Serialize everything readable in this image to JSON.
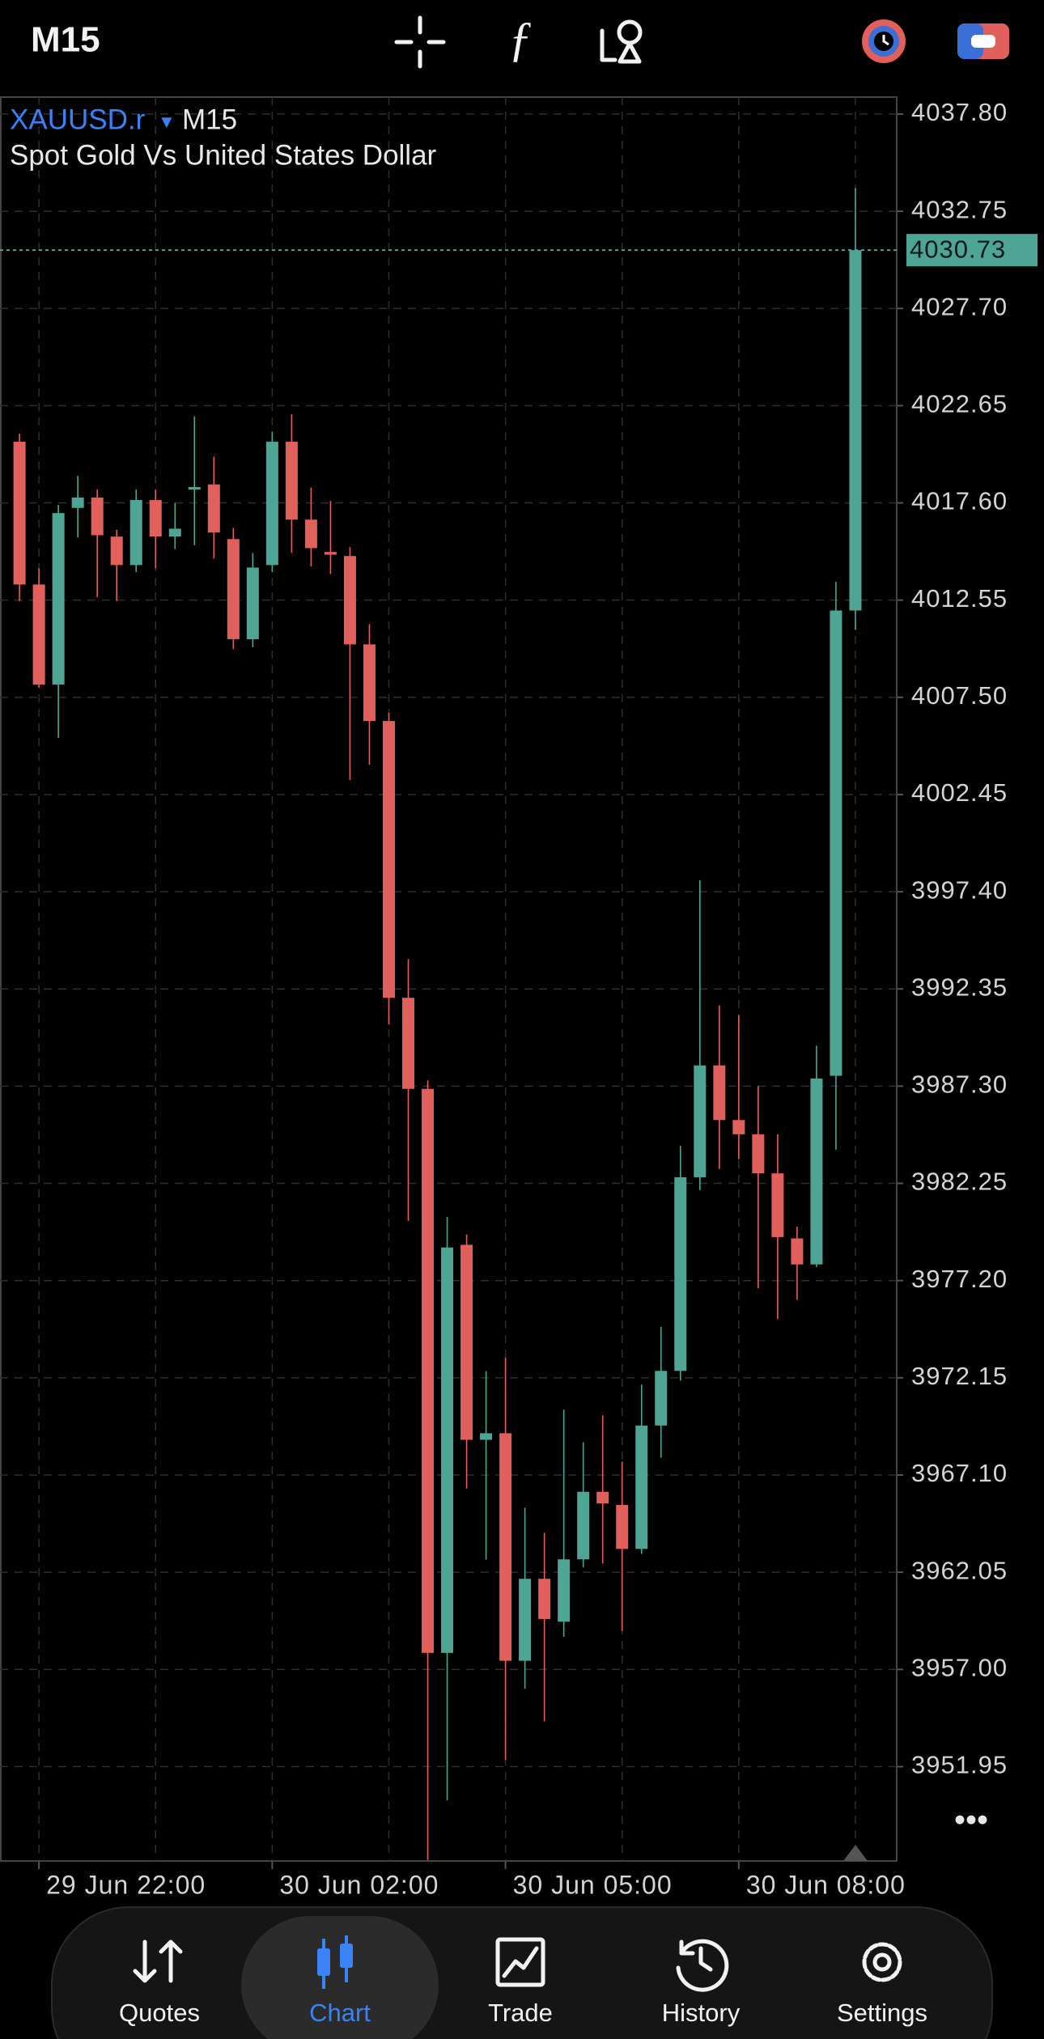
{
  "toolbar": {
    "timeframe": "M15"
  },
  "chart_data": {
    "type": "candlestick",
    "symbol": "XAUUSD.r",
    "timeframe": "M15",
    "title": "Spot Gold Vs United States Dollar",
    "categories": [
      null,
      "29 Jun 22:00",
      null,
      null,
      null,
      null,
      null,
      null,
      null,
      null,
      null,
      null,
      null,
      "30 Jun 02:00",
      null,
      null,
      null,
      null,
      null,
      null,
      null,
      null,
      null,
      null,
      null,
      "30 Jun 05:00",
      null,
      null,
      null,
      null,
      null,
      null,
      null,
      null,
      null,
      null,
      null,
      "30 Jun 08:00",
      null,
      null,
      null,
      null,
      null,
      null
    ],
    "open": [
      4020.78,
      4013.36,
      4008.16,
      4017.34,
      4017.88,
      4015.85,
      4014.37,
      4017.75,
      4015.85,
      4018.29,
      4018.56,
      4015.72,
      4010.52,
      4014.37,
      4020.78,
      4016.73,
      4015.05,
      4014.84,
      4010.25,
      4006.27,
      3991.89,
      3987.16,
      3957.86,
      3979.06,
      3968.93,
      3969.27,
      3957.45,
      3961.71,
      3959.48,
      3962.72,
      3966.23,
      3965.55,
      3963.26,
      3969.67,
      3972.51,
      3982.57,
      3988.38,
      3985.54,
      3984.8,
      3982.77,
      3979.39,
      3978.04,
      3987.84,
      4012.01
    ],
    "high": [
      4021.2,
      4014.2,
      4017.5,
      4019.0,
      4018.3,
      4016.2,
      4018.3,
      4018.3,
      4017.6,
      4022.1,
      4020.0,
      4016.3,
      4015.0,
      4021.3,
      4022.2,
      4018.4,
      4017.7,
      4015.3,
      4011.3,
      4006.7,
      3993.9,
      3987.6,
      3980.5,
      3979.6,
      3972.5,
      3973.2,
      3965.4,
      3964.1,
      3970.5,
      3968.8,
      3970.2,
      3967.8,
      3971.8,
      3974.8,
      3984.2,
      3998.0,
      3991.5,
      3991.0,
      3987.3,
      3984.8,
      3980.0,
      3989.4,
      4013.5,
      4033.95
    ],
    "low": [
      4012.5,
      4008.0,
      4005.4,
      4015.8,
      4012.7,
      4012.5,
      4014.0,
      4014.2,
      4015.2,
      4015.4,
      4014.7,
      4010.0,
      4010.1,
      4014.0,
      4015.0,
      4014.3,
      4013.9,
      4003.2,
      4004.0,
      3990.5,
      3980.3,
      3947.1,
      3950.2,
      3966.4,
      3962.7,
      3952.3,
      3956.0,
      3954.3,
      3958.7,
      3962.3,
      3962.5,
      3959.0,
      3963.0,
      3968.0,
      3972.0,
      3981.9,
      3983.0,
      3983.5,
      3976.8,
      3975.2,
      3976.2,
      3977.9,
      3984.0,
      4011.0
    ],
    "close": [
      4013.36,
      4008.16,
      4017.07,
      4017.88,
      4015.92,
      4014.37,
      4017.75,
      4015.85,
      4016.26,
      4018.42,
      4016.06,
      4010.52,
      4014.24,
      4020.78,
      4016.73,
      4015.25,
      4014.91,
      4010.25,
      4006.27,
      3991.89,
      3987.16,
      3957.86,
      3978.92,
      3968.93,
      3969.27,
      3957.45,
      3961.71,
      3959.62,
      3962.72,
      3966.23,
      3965.62,
      3963.26,
      3969.67,
      3972.51,
      3982.57,
      3988.38,
      3985.54,
      3984.8,
      3982.77,
      3979.46,
      3978.04,
      3987.7,
      4012.01,
      4030.73
    ],
    "up_color": "#4fa595",
    "down_color": "#e2605b",
    "last_price": 4030.73,
    "ylim": [
      3947.05,
      4038.68
    ],
    "yticks": [
      {
        "value": 4037.8,
        "label": "4037.80"
      },
      4032.75,
      {
        "value": 4027.7,
        "label": "4027.70"
      },
      4022.65,
      {
        "value": 4017.6,
        "label": "4017.60"
      },
      4012.55,
      {
        "value": 4007.5,
        "label": "4007.50"
      },
      4002.45,
      {
        "value": 3997.4,
        "label": "3997.40"
      },
      3992.35,
      {
        "value": 3987.3,
        "label": "3987.30"
      },
      3982.25,
      {
        "value": 3977.2,
        "label": "3977.20"
      },
      3972.15,
      {
        "value": 3967.1,
        "label": "3967.10"
      },
      3962.05,
      {
        "value": 3957.0,
        "label": "3957.00"
      },
      3951.95
    ],
    "grid": true
  },
  "nav": [
    "Quotes",
    "Chart",
    "Trade",
    "History",
    "Settings"
  ],
  "nav_active": 1
}
